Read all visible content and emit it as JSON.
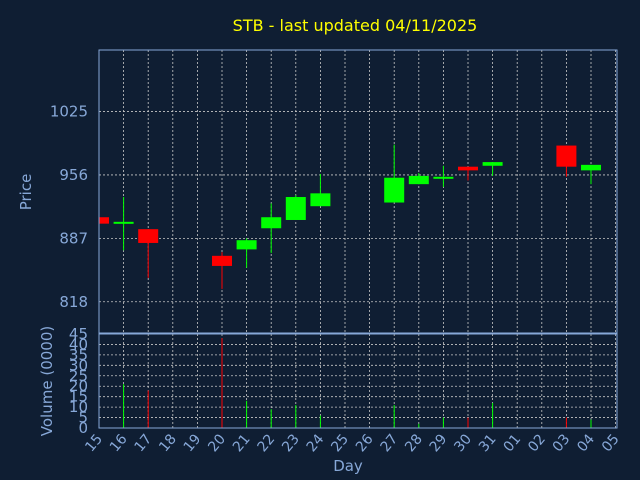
{
  "colors": {
    "background": "#0f1e33",
    "title": "#ffff00",
    "axis_text": "#87a8d8",
    "grid": "#c8c8c8",
    "frame": "#87a8d8",
    "up": "#00ff00",
    "down": "#ff0000"
  },
  "chart_data": [
    {
      "type": "candlestick",
      "title": "STB - last updated 04/11/2025",
      "ylabel": "Price",
      "xlabel": "Day",
      "ylim": [
        784,
        1092
      ],
      "yticks": [
        818,
        887,
        956,
        1025
      ],
      "grid": true,
      "x": [
        "15",
        "16",
        "17",
        "18",
        "19",
        "20",
        "21",
        "22",
        "23",
        "24",
        "25",
        "26",
        "27",
        "28",
        "29",
        "30",
        "31",
        "01",
        "02",
        "03",
        "04",
        "05"
      ],
      "candles": [
        {
          "x": "15",
          "open": 910,
          "close": 903,
          "high": 920,
          "low": 893
        },
        {
          "x": "16",
          "open": 903,
          "close": 905,
          "high": 932,
          "low": 874
        },
        {
          "x": "17",
          "open": 897,
          "close": 882,
          "high": 897,
          "low": 844
        },
        {
          "x": "20",
          "open": 868,
          "close": 857,
          "high": 872,
          "low": 832
        },
        {
          "x": "21",
          "open": 875,
          "close": 885,
          "high": 887,
          "low": 855
        },
        {
          "x": "22",
          "open": 898,
          "close": 910,
          "high": 925,
          "low": 871
        },
        {
          "x": "23",
          "open": 907,
          "close": 932,
          "high": 934,
          "low": 907
        },
        {
          "x": "24",
          "open": 922,
          "close": 936,
          "high": 957,
          "low": 922
        },
        {
          "x": "27",
          "open": 926,
          "close": 953,
          "high": 989,
          "low": 926
        },
        {
          "x": "28",
          "open": 946,
          "close": 955,
          "high": 958,
          "low": 946
        },
        {
          "x": "29",
          "open": 952,
          "close": 954,
          "high": 966,
          "low": 943
        },
        {
          "x": "30",
          "open": 965,
          "close": 961,
          "high": 965,
          "low": 950
        },
        {
          "x": "31",
          "open": 966,
          "close": 970,
          "high": 970,
          "low": 955
        },
        {
          "x": "03",
          "open": 988,
          "close": 965,
          "high": 988,
          "low": 954
        },
        {
          "x": "04",
          "open": 961,
          "close": 967,
          "high": 967,
          "low": 946
        }
      ]
    },
    {
      "type": "bar",
      "ylabel": "Volume (0000)",
      "ylim": [
        0,
        45
      ],
      "yticks": [
        0,
        5,
        10,
        15,
        20,
        25,
        30,
        35,
        40,
        45
      ],
      "grid": true,
      "bars": [
        {
          "x": "15",
          "value": 0,
          "direction": "down"
        },
        {
          "x": "16",
          "value": 21,
          "direction": "up"
        },
        {
          "x": "17",
          "value": 18,
          "direction": "down"
        },
        {
          "x": "20",
          "value": 43,
          "direction": "down"
        },
        {
          "x": "21",
          "value": 13,
          "direction": "up"
        },
        {
          "x": "22",
          "value": 9,
          "direction": "up"
        },
        {
          "x": "23",
          "value": 11,
          "direction": "up"
        },
        {
          "x": "24",
          "value": 6,
          "direction": "up"
        },
        {
          "x": "27",
          "value": 11,
          "direction": "up"
        },
        {
          "x": "28",
          "value": 2,
          "direction": "up"
        },
        {
          "x": "29",
          "value": 5,
          "direction": "up"
        },
        {
          "x": "30",
          "value": 5,
          "direction": "down"
        },
        {
          "x": "31",
          "value": 12,
          "direction": "up"
        },
        {
          "x": "03",
          "value": 5,
          "direction": "down"
        },
        {
          "x": "04",
          "value": 4,
          "direction": "up"
        }
      ]
    }
  ]
}
